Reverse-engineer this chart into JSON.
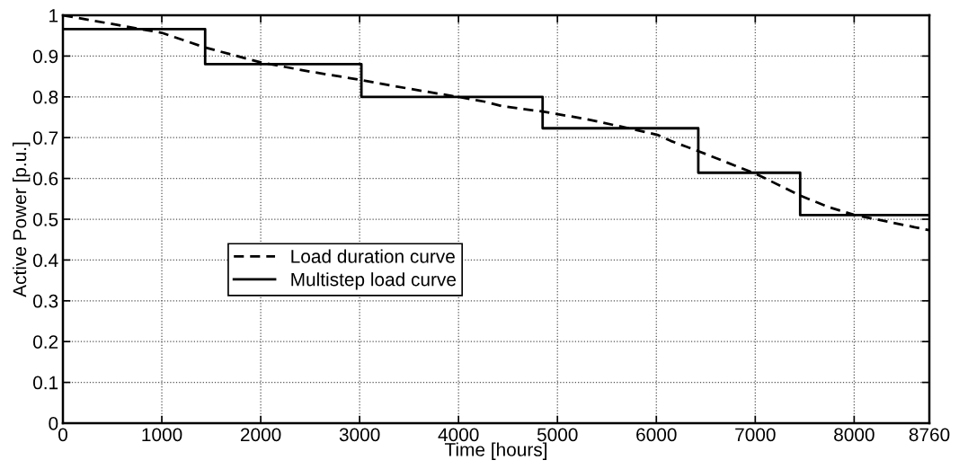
{
  "chart_data": {
    "type": "line",
    "xlabel": "Time [hours]",
    "ylabel": "Active Power [p.u.]",
    "xlim": [
      0,
      8760
    ],
    "ylim": [
      0,
      1
    ],
    "xticks": [
      0,
      1000,
      2000,
      3000,
      4000,
      5000,
      6000,
      7000,
      8000,
      8760
    ],
    "yticks": [
      0,
      0.1,
      0.2,
      0.3,
      0.4,
      0.5,
      0.6,
      0.7,
      0.8,
      0.9,
      1
    ],
    "grid": true,
    "legend": "center left",
    "series": [
      {
        "name": "Load duration curve",
        "line_style": "dashed",
        "color": "#000000",
        "x": [
          0,
          1000,
          1438,
          2007,
          2500,
          3018,
          3500,
          4017,
          4269,
          4441,
          4850,
          5300,
          5722,
          6010,
          6146,
          6424,
          7009,
          7454,
          7750,
          7999,
          8760
        ],
        "values": [
          1.0,
          0.957,
          0.921,
          0.884,
          0.862,
          0.841,
          0.82,
          0.799,
          0.788,
          0.777,
          0.764,
          0.745,
          0.723,
          0.707,
          0.692,
          0.667,
          0.611,
          0.558,
          0.529,
          0.511,
          0.473
        ]
      },
      {
        "name": "Multistep load curve",
        "type": "step",
        "line_style": "solid",
        "color": "#000000",
        "x": [
          0,
          1438,
          3018,
          4850,
          6424,
          7454,
          8760
        ],
        "values": [
          0.966,
          0.88,
          0.8,
          0.723,
          0.614,
          0.51,
          0.51
        ]
      }
    ]
  }
}
